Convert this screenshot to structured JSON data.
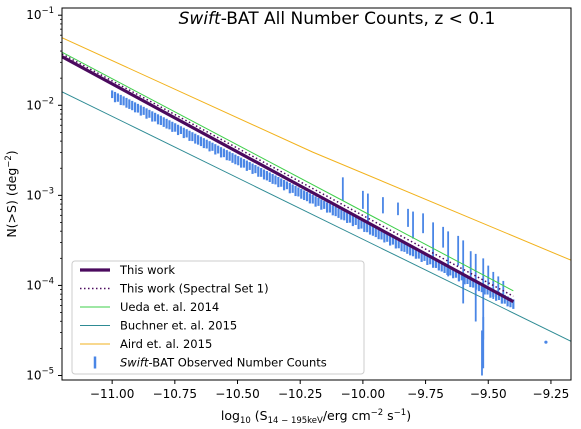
{
  "chart_data": {
    "type": "line",
    "title_italic": "Swift",
    "title_rest": "-BAT All Number Counts, z < 0.1",
    "xlabel_prefix": "log",
    "xlabel_sub10": "10",
    "xlabel_mid": " (S",
    "xlabel_sub": "14 − 195keV",
    "xlabel_end1": "/erg cm",
    "xlabel_sup1": "−2",
    "xlabel_end2": " s",
    "xlabel_sup2": "−1",
    "xlabel_close": ")",
    "ylabel": "N(>S) (deg",
    "ylabel_sup": "−2",
    "ylabel_close": ")",
    "xlim": [
      -11.2,
      -9.17
    ],
    "ylim_log10": [
      -5.05,
      -0.92
    ],
    "x_ticks": [
      -11.0,
      -10.75,
      -10.5,
      -10.25,
      -10.0,
      -9.75,
      -9.5,
      -9.25
    ],
    "x_tick_labels": [
      "−11.00",
      "−10.75",
      "−10.50",
      "−10.25",
      "−10.00",
      "−9.75",
      "−9.50",
      "−9.25"
    ],
    "y_ticks_log10": [
      -1,
      -2,
      -3,
      -4,
      -5
    ],
    "y_tick_bases": [
      "10",
      "10",
      "10",
      "10",
      "10"
    ],
    "y_tick_exps": [
      "−1",
      "−2",
      "−3",
      "−4",
      "−5"
    ],
    "legend_position": "lower-left",
    "series": [
      {
        "name": "This work",
        "color": "#4b0a5e",
        "style": "solid-thick",
        "x": [
          -11.2,
          -9.4
        ],
        "y_log10": [
          -1.46,
          -4.18
        ]
      },
      {
        "name": "This work (Spectral Set 1)",
        "color": "#4b0a5e",
        "style": "dotted",
        "x": [
          -11.2,
          -9.4
        ],
        "y_log10": [
          -1.43,
          -4.12
        ]
      },
      {
        "name": "Ueda et. al. 2014",
        "color": "#3ecf4a",
        "style": "solid",
        "x": [
          -11.2,
          -9.4
        ],
        "y_log10": [
          -1.41,
          -4.06
        ]
      },
      {
        "name": "Buchner et. al. 2015",
        "color": "#2e8b94",
        "style": "solid",
        "x": [
          -11.2,
          -9.17
        ],
        "y_log10": [
          -1.85,
          -4.62
        ]
      },
      {
        "name": "Aird et. al. 2015",
        "color": "#f2b21c",
        "style": "solid",
        "x": [
          -11.2,
          -10.2,
          -9.17
        ],
        "y_log10": [
          -1.25,
          -2.52,
          -3.72
        ]
      }
    ],
    "observed": {
      "name_italic": "Swift",
      "name_rest": "-BAT Observed Number Counts",
      "color": "#4a86e6",
      "start": [
        -11.0,
        -1.86
      ],
      "end": [
        -9.4,
        -4.18
      ],
      "spikes": [
        [
          -10.08,
          -2.8,
          -3.06
        ],
        [
          -10.0,
          -2.95,
          -3.15
        ],
        [
          -9.98,
          -2.98,
          -3.3
        ],
        [
          -9.92,
          -3.02,
          -3.2
        ],
        [
          -9.86,
          -3.08,
          -3.22
        ],
        [
          -9.82,
          -3.15,
          -3.35
        ],
        [
          -9.8,
          -3.18,
          -3.48
        ],
        [
          -9.76,
          -3.2,
          -3.42
        ],
        [
          -9.72,
          -3.3,
          -3.75
        ],
        [
          -9.68,
          -3.35,
          -3.58
        ],
        [
          -9.66,
          -3.4,
          -3.9
        ],
        [
          -9.62,
          -3.45,
          -3.78
        ],
        [
          -9.6,
          -3.5,
          -4.2
        ],
        [
          -9.57,
          -3.62,
          -3.95
        ],
        [
          -9.55,
          -3.65,
          -4.4
        ],
        [
          -9.52,
          -3.7,
          -4.6
        ],
        [
          -9.5,
          -3.78,
          -4.0
        ],
        [
          -9.48,
          -3.85,
          -4.15
        ],
        [
          -9.46,
          -3.9,
          -4.1
        ],
        [
          -9.44,
          -3.95,
          -4.12
        ]
      ],
      "outliers": [
        [
          -9.52,
          -4.35,
          -4.92
        ],
        [
          -9.525,
          -4.5,
          -5.0
        ],
        [
          -9.27,
          -4.63,
          -4.63
        ]
      ]
    }
  }
}
